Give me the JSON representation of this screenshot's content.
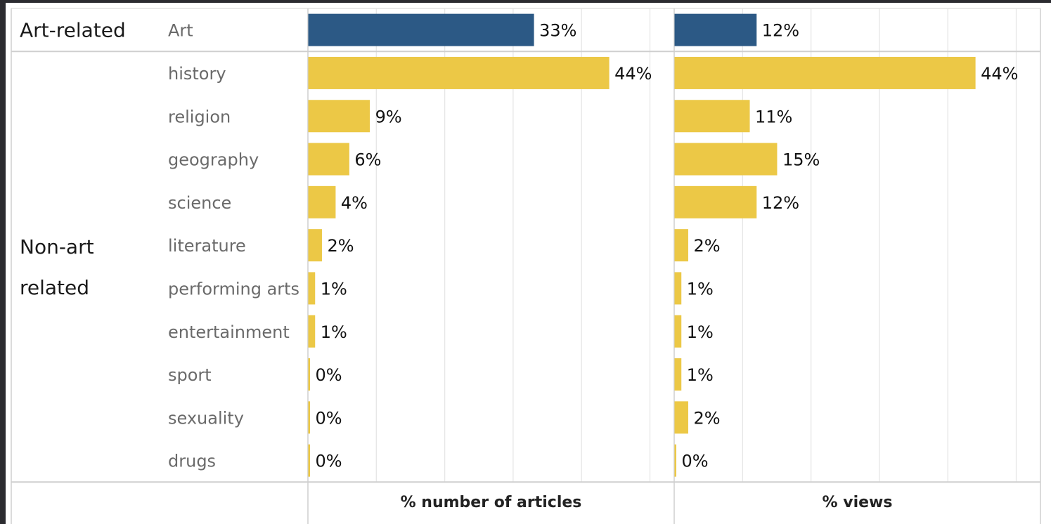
{
  "chart_data": {
    "type": "bar",
    "orientation": "horizontal",
    "groups": [
      {
        "label": "Art-related",
        "lines": [
          "Art-related"
        ],
        "categories": [
          "Art"
        ]
      },
      {
        "label": "Non-art related",
        "lines": [
          "Non-art",
          "related"
        ],
        "categories": [
          "history",
          "religion",
          "geography",
          "science",
          "literature",
          "performing arts",
          "entertainment",
          "sport",
          "sexuality",
          "drugs"
        ]
      }
    ],
    "categories": [
      "Art",
      "history",
      "religion",
      "geography",
      "science",
      "literature",
      "performing arts",
      "entertainment",
      "sport",
      "sexuality",
      "drugs"
    ],
    "series": [
      {
        "name": "% number of articles",
        "values": [
          33,
          44,
          9,
          6,
          4,
          2,
          1,
          1,
          0,
          0,
          0
        ],
        "labels": [
          "33%",
          "44%",
          "9%",
          "6%",
          "4%",
          "2%",
          "1%",
          "1%",
          "0%",
          "0%",
          "0%"
        ]
      },
      {
        "name": "% views",
        "values": [
          12,
          44,
          11,
          15,
          12,
          2,
          1,
          1,
          1,
          2,
          0
        ],
        "labels": [
          "12%",
          "44%",
          "11%",
          "15%",
          "12%",
          "2%",
          "1%",
          "1%",
          "1%",
          "2%",
          "0%"
        ]
      }
    ],
    "xlim": [
      0,
      53
    ],
    "colors": {
      "art": "#2c5985",
      "non_art": "#ecc846",
      "grid": "#e6e6e6",
      "border": "#cfcfcf"
    },
    "grid": true
  }
}
